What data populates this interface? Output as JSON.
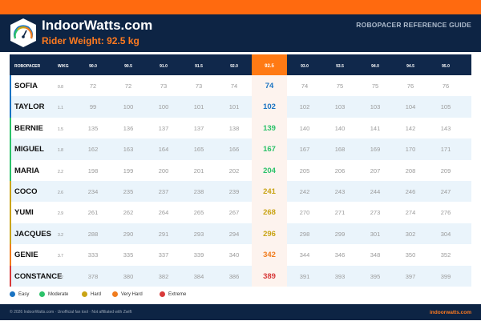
{
  "header": {
    "brand": "IndoorWatts.com",
    "subtitle": "Rider Weight: 92.5 kg",
    "guide": "ROBOPACER REFERENCE GUIDE"
  },
  "table": {
    "name_header": "ROBOPACER",
    "wkg_header": "W/KG",
    "weights": [
      "90.0",
      "90.5",
      "91.0",
      "91.5",
      "92.0",
      "92.5",
      "93.0",
      "93.5",
      "94.0",
      "94.5",
      "95.0"
    ],
    "active_index": 5,
    "rows": [
      {
        "name": "SOFIA",
        "wkg": "0.8",
        "level": "easy",
        "values": [
          "72",
          "72",
          "73",
          "73",
          "74",
          "74",
          "74",
          "75",
          "75",
          "76",
          "76"
        ]
      },
      {
        "name": "TAYLOR",
        "wkg": "1.1",
        "level": "easy",
        "values": [
          "99",
          "100",
          "100",
          "101",
          "101",
          "102",
          "102",
          "103",
          "103",
          "104",
          "105"
        ]
      },
      {
        "name": "BERNIE",
        "wkg": "1.5",
        "level": "moderate",
        "values": [
          "135",
          "136",
          "137",
          "137",
          "138",
          "139",
          "140",
          "140",
          "141",
          "142",
          "143"
        ]
      },
      {
        "name": "MIGUEL",
        "wkg": "1.8",
        "level": "moderate",
        "values": [
          "162",
          "163",
          "164",
          "165",
          "166",
          "167",
          "167",
          "168",
          "169",
          "170",
          "171"
        ]
      },
      {
        "name": "MARIA",
        "wkg": "2.2",
        "level": "moderate",
        "values": [
          "198",
          "199",
          "200",
          "201",
          "202",
          "204",
          "205",
          "206",
          "207",
          "208",
          "209"
        ]
      },
      {
        "name": "COCO",
        "wkg": "2.6",
        "level": "hard",
        "values": [
          "234",
          "235",
          "237",
          "238",
          "239",
          "241",
          "242",
          "243",
          "244",
          "246",
          "247"
        ]
      },
      {
        "name": "YUMI",
        "wkg": "2.9",
        "level": "hard",
        "values": [
          "261",
          "262",
          "264",
          "265",
          "267",
          "268",
          "270",
          "271",
          "273",
          "274",
          "276"
        ]
      },
      {
        "name": "JACQUES",
        "wkg": "3.2",
        "level": "hard",
        "values": [
          "288",
          "290",
          "291",
          "293",
          "294",
          "296",
          "298",
          "299",
          "301",
          "302",
          "304"
        ]
      },
      {
        "name": "GENIE",
        "wkg": "3.7",
        "level": "very-hard",
        "values": [
          "333",
          "335",
          "337",
          "339",
          "340",
          "342",
          "344",
          "346",
          "348",
          "350",
          "352"
        ]
      },
      {
        "name": "CONSTANCE",
        "wkg": "4.2",
        "level": "extreme",
        "values": [
          "378",
          "380",
          "382",
          "384",
          "386",
          "389",
          "391",
          "393",
          "395",
          "397",
          "399"
        ]
      }
    ]
  },
  "level_colors": {
    "easy": "#1a73c2",
    "moderate": "#2cc26a",
    "hard": "#c9a415",
    "very-hard": "#f07c1e",
    "extreme": "#d83a3a"
  },
  "legend": [
    {
      "level": "easy",
      "label": "Easy"
    },
    {
      "level": "moderate",
      "label": "Moderate"
    },
    {
      "level": "hard",
      "label": "Hard"
    },
    {
      "level": "very-hard",
      "label": "Very Hard"
    },
    {
      "level": "extreme",
      "label": "Extreme"
    }
  ],
  "footer": {
    "copyright": "© 2026 IndoorWatts.com · Unofficial fan tool · Not affiliated with Zwift",
    "site": "indoorwatts.com"
  }
}
